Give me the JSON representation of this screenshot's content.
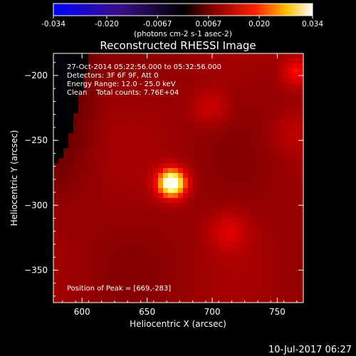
{
  "colorbar": {
    "ticks": [
      "-0.034",
      "-0.020",
      "-0.0067",
      "0.0067",
      "0.020",
      "0.034"
    ],
    "tick_values": [
      -0.034,
      -0.02,
      -0.0067,
      0.0067,
      0.02,
      0.034
    ],
    "range": [
      -0.034,
      0.034
    ],
    "label": "(photons cm-2 s-1 asec-2)"
  },
  "info": {
    "time": "27-Oct-2014 05:22:56.000 to 05:32:56.000",
    "detectors": "Detectors: 3F 6F 9F, Att 0",
    "energy": "Energy Range: 12.0 - 25.0 keV",
    "clean": "Clean    Total counts: 7.76E+04",
    "peak": "Position of Peak = [669,-283]"
  },
  "footer": {
    "date": "10-Jul-2017 06:27"
  },
  "chart_data": {
    "type": "heatmap",
    "title": "Reconstructed RHESSI Image",
    "xlabel": "Heliocentric X (arcsec)",
    "ylabel": "Heliocentric Y (arcsec)",
    "xlim": [
      578,
      770
    ],
    "ylim": [
      -375,
      -183
    ],
    "x_ticks": [
      600,
      650,
      700,
      750
    ],
    "y_ticks": [
      -200,
      -250,
      -300,
      -350
    ],
    "peak": {
      "x": 669,
      "y": -283
    },
    "colormap": "hot (blue-purple negative, red-yellow-white positive)",
    "sources": [
      {
        "x": 669,
        "y": -283,
        "amp": 1.0,
        "sigma": 8
      },
      {
        "x": 699,
        "y": -225,
        "amp": 0.2,
        "sigma": 10
      },
      {
        "x": 713,
        "y": -320,
        "amp": 0.22,
        "sigma": 11
      },
      {
        "x": 765,
        "y": -197,
        "amp": 0.35,
        "sigma": 8
      },
      {
        "x": 760,
        "y": -245,
        "amp": 0.12,
        "sigma": 12
      }
    ]
  }
}
